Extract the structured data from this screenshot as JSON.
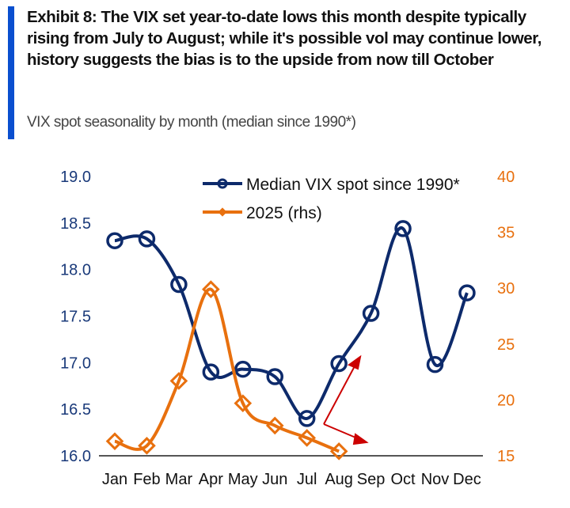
{
  "header": {
    "title": "Exhibit 8: The VIX set year-to-date lows this month despite typically rising from July to August; while it's possible vol may continue lower, history suggests the bias is to the upside from now till October",
    "subtitle": "VIX spot seasonality by month (median since 1990*)"
  },
  "colors": {
    "accent_bar": "#0a4fcf",
    "median": "#0d2a6b",
    "y2025": "#e8700e",
    "annotation": "#cc0000",
    "right_axis": "#e8700e"
  },
  "chart_data": {
    "type": "line",
    "categories": [
      "Jan",
      "Feb",
      "Mar",
      "Apr",
      "May",
      "Jun",
      "Jul",
      "Aug",
      "Sep",
      "Oct",
      "Nov",
      "Dec"
    ],
    "series": [
      {
        "name": "Median VIX spot since 1990*",
        "axis": "left",
        "marker": "circle",
        "values": [
          18.31,
          18.33,
          17.84,
          16.9,
          16.93,
          16.85,
          16.4,
          16.99,
          17.53,
          18.44,
          16.98,
          17.75
        ]
      },
      {
        "name": "2025 (rhs)",
        "axis": "right",
        "marker": "diamond",
        "values": [
          16.3,
          15.9,
          21.7,
          29.9,
          19.7,
          17.7,
          16.6,
          15.4,
          null,
          null,
          null,
          null
        ]
      }
    ],
    "ylim": [
      16.0,
      19.0
    ],
    "yticks": [
      "16.0",
      "16.5",
      "17.0",
      "17.5",
      "18.0",
      "18.5",
      "19.0"
    ],
    "y2lim": [
      15,
      40
    ],
    "y2ticks": [
      "15",
      "20",
      "25",
      "30",
      "35",
      "40"
    ],
    "legend": "top",
    "grid": false,
    "annotations": "two red arrows after Jul (up and down)"
  }
}
